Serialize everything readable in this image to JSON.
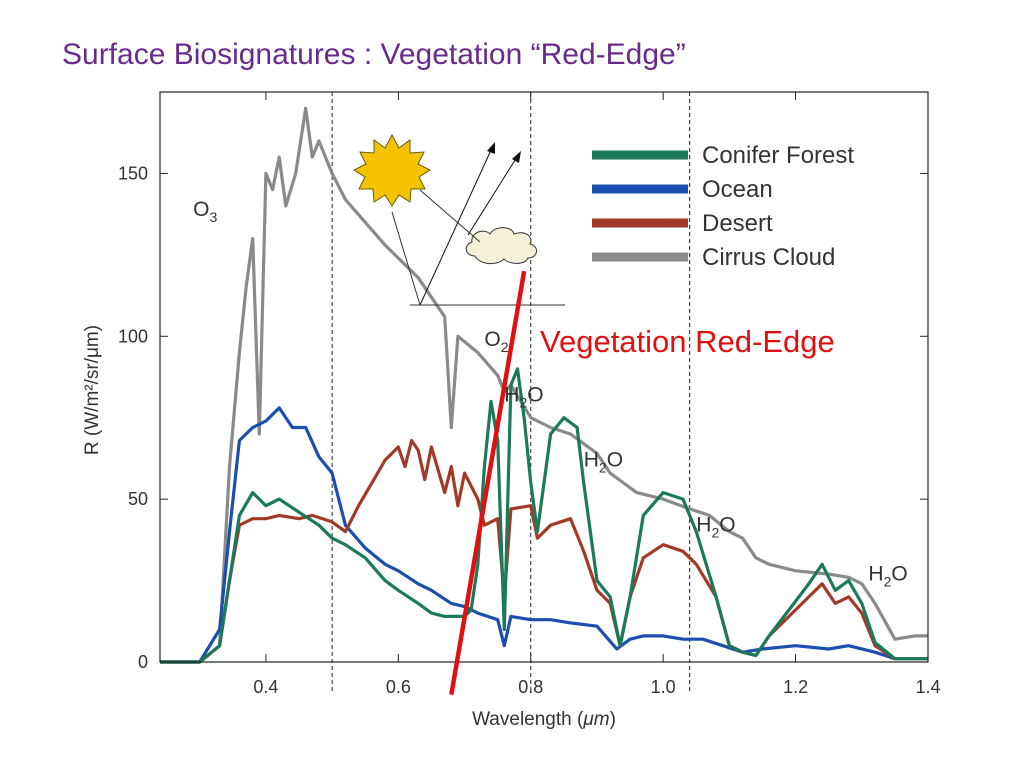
{
  "slide": {
    "title": "Surface Biosignatures : Vegetation “Red-Edge”"
  },
  "chart_data": {
    "type": "line",
    "xlabel_prefix": "Wavelength (",
    "xlabel_unit": "μm",
    "xlabel_suffix": ")",
    "ylabel": "R (W/m²/sr/μm)",
    "xlim": [
      0.24,
      1.4
    ],
    "ylim": [
      0,
      175
    ],
    "x_ticks": [
      0.4,
      0.6,
      0.8,
      1.0,
      1.2,
      1.4
    ],
    "x_tick_labels": [
      "0.4",
      "0.6",
      "0.8",
      "1.0",
      "1.2",
      "1.4"
    ],
    "y_ticks": [
      0,
      50,
      100,
      150
    ],
    "y_tick_labels": [
      "0",
      "50",
      "100",
      "150"
    ],
    "legend_position": "top-right",
    "series": [
      {
        "name": "Cirrus Cloud",
        "color": "#8a8a8a",
        "points": [
          [
            0.24,
            0
          ],
          [
            0.3,
            0
          ],
          [
            0.33,
            5
          ],
          [
            0.345,
            60
          ],
          [
            0.36,
            95
          ],
          [
            0.37,
            115
          ],
          [
            0.38,
            130
          ],
          [
            0.39,
            70
          ],
          [
            0.4,
            150
          ],
          [
            0.41,
            145
          ],
          [
            0.42,
            155
          ],
          [
            0.43,
            140
          ],
          [
            0.445,
            150
          ],
          [
            0.46,
            170
          ],
          [
            0.47,
            155
          ],
          [
            0.48,
            160
          ],
          [
            0.5,
            150
          ],
          [
            0.52,
            142
          ],
          [
            0.55,
            135
          ],
          [
            0.58,
            128
          ],
          [
            0.6,
            124
          ],
          [
            0.63,
            118
          ],
          [
            0.65,
            112
          ],
          [
            0.67,
            106
          ],
          [
            0.68,
            72
          ],
          [
            0.69,
            100
          ],
          [
            0.72,
            95
          ],
          [
            0.75,
            88
          ],
          [
            0.76,
            83
          ],
          [
            0.77,
            85
          ],
          [
            0.8,
            75
          ],
          [
            0.83,
            72
          ],
          [
            0.86,
            70
          ],
          [
            0.9,
            64
          ],
          [
            0.92,
            58
          ],
          [
            0.94,
            55
          ],
          [
            0.96,
            52
          ],
          [
            1.0,
            50
          ],
          [
            1.04,
            47
          ],
          [
            1.07,
            45
          ],
          [
            1.1,
            40
          ],
          [
            1.12,
            38
          ],
          [
            1.14,
            32
          ],
          [
            1.16,
            30
          ],
          [
            1.2,
            28
          ],
          [
            1.25,
            27
          ],
          [
            1.28,
            26
          ],
          [
            1.3,
            24
          ],
          [
            1.32,
            18
          ],
          [
            1.35,
            7
          ],
          [
            1.38,
            8
          ],
          [
            1.4,
            8
          ]
        ]
      },
      {
        "name": "Ocean",
        "color": "#1a4fb0",
        "points": [
          [
            0.24,
            0
          ],
          [
            0.3,
            0
          ],
          [
            0.33,
            10
          ],
          [
            0.345,
            40
          ],
          [
            0.36,
            68
          ],
          [
            0.38,
            72
          ],
          [
            0.4,
            74
          ],
          [
            0.42,
            78
          ],
          [
            0.44,
            72
          ],
          [
            0.46,
            72
          ],
          [
            0.48,
            63
          ],
          [
            0.5,
            58
          ],
          [
            0.52,
            42
          ],
          [
            0.55,
            35
          ],
          [
            0.58,
            30
          ],
          [
            0.6,
            28
          ],
          [
            0.63,
            24
          ],
          [
            0.65,
            22
          ],
          [
            0.68,
            18
          ],
          [
            0.7,
            17
          ],
          [
            0.72,
            15
          ],
          [
            0.75,
            13
          ],
          [
            0.76,
            5
          ],
          [
            0.77,
            14
          ],
          [
            0.8,
            13
          ],
          [
            0.83,
            13
          ],
          [
            0.86,
            12
          ],
          [
            0.9,
            11
          ],
          [
            0.93,
            4
          ],
          [
            0.95,
            7
          ],
          [
            0.97,
            8
          ],
          [
            1.0,
            8
          ],
          [
            1.03,
            7
          ],
          [
            1.06,
            7
          ],
          [
            1.09,
            5
          ],
          [
            1.12,
            3
          ],
          [
            1.15,
            4
          ],
          [
            1.2,
            5
          ],
          [
            1.25,
            4
          ],
          [
            1.28,
            5
          ],
          [
            1.32,
            3
          ],
          [
            1.35,
            1
          ],
          [
            1.4,
            1
          ]
        ]
      },
      {
        "name": "Desert",
        "color": "#a33a28",
        "points": [
          [
            0.24,
            0
          ],
          [
            0.3,
            0
          ],
          [
            0.33,
            5
          ],
          [
            0.345,
            25
          ],
          [
            0.36,
            42
          ],
          [
            0.38,
            44
          ],
          [
            0.4,
            44
          ],
          [
            0.42,
            45
          ],
          [
            0.45,
            44
          ],
          [
            0.47,
            45
          ],
          [
            0.5,
            43
          ],
          [
            0.52,
            40
          ],
          [
            0.54,
            48
          ],
          [
            0.56,
            55
          ],
          [
            0.58,
            62
          ],
          [
            0.6,
            66
          ],
          [
            0.61,
            60
          ],
          [
            0.62,
            68
          ],
          [
            0.63,
            65
          ],
          [
            0.64,
            56
          ],
          [
            0.65,
            66
          ],
          [
            0.67,
            52
          ],
          [
            0.68,
            60
          ],
          [
            0.69,
            48
          ],
          [
            0.7,
            58
          ],
          [
            0.72,
            50
          ],
          [
            0.73,
            42
          ],
          [
            0.75,
            44
          ],
          [
            0.76,
            20
          ],
          [
            0.77,
            47
          ],
          [
            0.8,
            48
          ],
          [
            0.81,
            38
          ],
          [
            0.83,
            42
          ],
          [
            0.86,
            44
          ],
          [
            0.88,
            34
          ],
          [
            0.9,
            22
          ],
          [
            0.92,
            18
          ],
          [
            0.935,
            5
          ],
          [
            0.95,
            20
          ],
          [
            0.97,
            32
          ],
          [
            1.0,
            36
          ],
          [
            1.03,
            34
          ],
          [
            1.05,
            30
          ],
          [
            1.08,
            20
          ],
          [
            1.1,
            5
          ],
          [
            1.12,
            3
          ],
          [
            1.14,
            2
          ],
          [
            1.16,
            8
          ],
          [
            1.19,
            14
          ],
          [
            1.22,
            20
          ],
          [
            1.24,
            24
          ],
          [
            1.26,
            18
          ],
          [
            1.28,
            20
          ],
          [
            1.3,
            15
          ],
          [
            1.32,
            5
          ],
          [
            1.35,
            1
          ],
          [
            1.4,
            1
          ]
        ]
      },
      {
        "name": "Conifer Forest",
        "color": "#1a7a5a",
        "points": [
          [
            0.24,
            0
          ],
          [
            0.3,
            0
          ],
          [
            0.33,
            5
          ],
          [
            0.345,
            25
          ],
          [
            0.36,
            45
          ],
          [
            0.38,
            52
          ],
          [
            0.4,
            48
          ],
          [
            0.42,
            50
          ],
          [
            0.45,
            46
          ],
          [
            0.48,
            42
          ],
          [
            0.5,
            38
          ],
          [
            0.52,
            36
          ],
          [
            0.55,
            32
          ],
          [
            0.58,
            25
          ],
          [
            0.6,
            22
          ],
          [
            0.63,
            18
          ],
          [
            0.65,
            15
          ],
          [
            0.67,
            14
          ],
          [
            0.69,
            14
          ],
          [
            0.7,
            14
          ],
          [
            0.71,
            16
          ],
          [
            0.72,
            30
          ],
          [
            0.73,
            60
          ],
          [
            0.74,
            80
          ],
          [
            0.75,
            68
          ],
          [
            0.76,
            10
          ],
          [
            0.77,
            85
          ],
          [
            0.78,
            90
          ],
          [
            0.79,
            75
          ],
          [
            0.8,
            55
          ],
          [
            0.81,
            40
          ],
          [
            0.83,
            70
          ],
          [
            0.85,
            75
          ],
          [
            0.87,
            72
          ],
          [
            0.88,
            55
          ],
          [
            0.9,
            25
          ],
          [
            0.92,
            20
          ],
          [
            0.935,
            5
          ],
          [
            0.95,
            20
          ],
          [
            0.97,
            45
          ],
          [
            1.0,
            52
          ],
          [
            1.03,
            50
          ],
          [
            1.05,
            40
          ],
          [
            1.08,
            20
          ],
          [
            1.1,
            5
          ],
          [
            1.12,
            3
          ],
          [
            1.14,
            2
          ],
          [
            1.16,
            8
          ],
          [
            1.19,
            16
          ],
          [
            1.22,
            24
          ],
          [
            1.24,
            30
          ],
          [
            1.26,
            22
          ],
          [
            1.28,
            25
          ],
          [
            1.3,
            18
          ],
          [
            1.32,
            6
          ],
          [
            1.35,
            1
          ],
          [
            1.4,
            1
          ]
        ]
      }
    ],
    "annotations": [
      {
        "base": "O",
        "sub": "3",
        "x": 0.29,
        "y": 137
      },
      {
        "base": "O",
        "sub": "2",
        "x": 0.73,
        "y": 97
      },
      {
        "base": "H",
        "sub": "2",
        "tail": "O",
        "x": 0.76,
        "y": 80
      },
      {
        "base": "H",
        "sub": "2",
        "tail": "O",
        "x": 0.88,
        "y": 60
      },
      {
        "base": "H",
        "sub": "2",
        "tail": "O",
        "x": 1.05,
        "y": 40
      },
      {
        "base": "H",
        "sub": "2",
        "tail": "O",
        "x": 1.31,
        "y": 25
      }
    ],
    "vertical_markers": [
      0.5,
      0.8,
      1.04
    ],
    "red_edge": {
      "label": "Vegetation Red-Edge",
      "color": "#e01010",
      "from": [
        0.68,
        -10
      ],
      "to": [
        0.79,
        120
      ]
    }
  }
}
